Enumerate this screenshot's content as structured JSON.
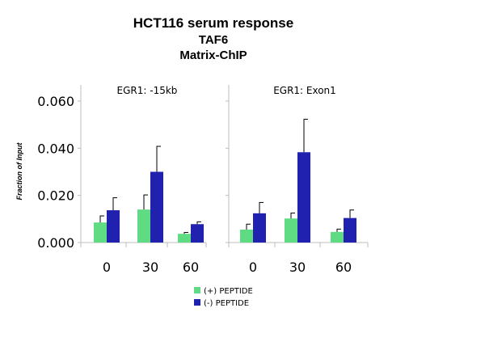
{
  "chart_data": {
    "type": "bar",
    "title_lines": [
      "HCT116 serum response",
      "TAF6",
      "Matrix-ChIP"
    ],
    "ylabel": "Fraction of Input",
    "ylim": [
      0,
      0.06
    ],
    "y_ticks": [
      "0.000",
      "0.020",
      "0.040",
      "0.060"
    ],
    "y_tick_values": [
      0,
      0.02,
      0.04,
      0.06
    ],
    "categories": [
      "0",
      "30",
      "60"
    ],
    "legend": [
      "(+) PEPTIDE",
      "(-) PEPTIDE"
    ],
    "legend_placement": "bottom",
    "grid": false,
    "colors": {
      "plus_peptide": "#5fdc83",
      "minus_peptide": "#2121b0"
    },
    "panels": [
      {
        "title": "EGR1: -15kb",
        "series": [
          {
            "name": "(+) PEPTIDE",
            "values": [
              0.0085,
              0.014,
              0.0037
            ],
            "errors": [
              0.0028,
              0.0062,
              0.0006
            ]
          },
          {
            "name": "(-) PEPTIDE",
            "values": [
              0.0137,
              0.03,
              0.0078
            ],
            "errors": [
              0.0053,
              0.0108,
              0.001
            ]
          }
        ]
      },
      {
        "title": "EGR1: Exon1",
        "series": [
          {
            "name": "(+) PEPTIDE",
            "values": [
              0.0055,
              0.0102,
              0.0045
            ],
            "errors": [
              0.0023,
              0.0023,
              0.0012
            ]
          },
          {
            "name": "(-) PEPTIDE",
            "values": [
              0.0124,
              0.0383,
              0.0104
            ],
            "errors": [
              0.0046,
              0.014,
              0.0034
            ]
          }
        ]
      }
    ]
  }
}
